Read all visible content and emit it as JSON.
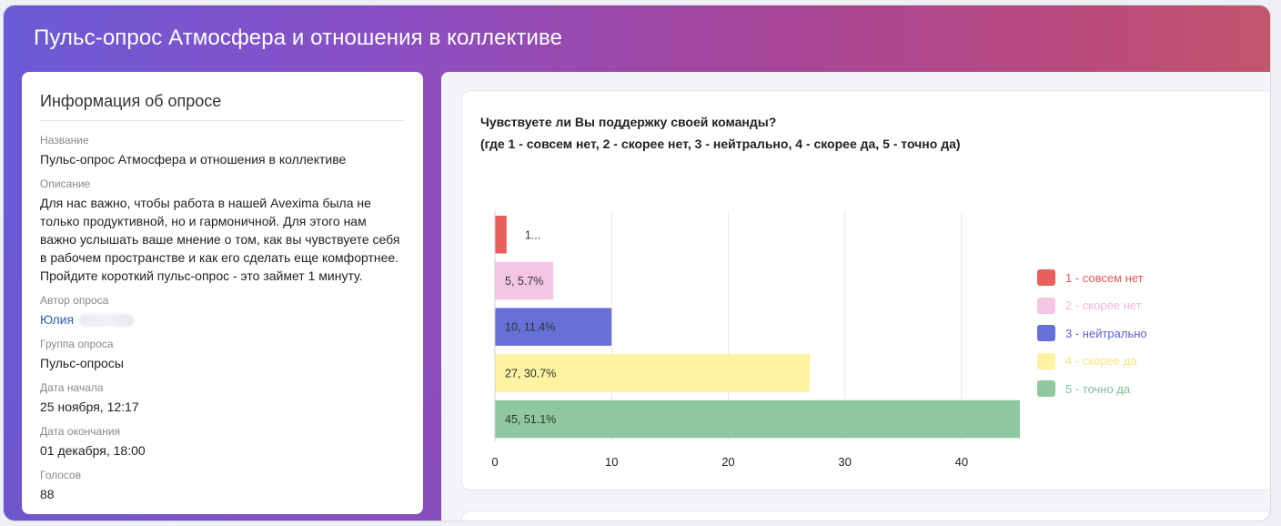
{
  "header": {
    "title": "Пульс-опрос Атмосфера и отношения в коллективе"
  },
  "info": {
    "title": "Информация об опросе",
    "fields": [
      {
        "label": "Название",
        "value": "Пульс-опрос Атмосфера и отношения в коллективе"
      },
      {
        "label": "Описание",
        "value": "Для нас важно, чтобы работа в нашей Avexima была не только продуктивной, но и гармоничной. Для этого нам важно услышать ваше мнение о том, как вы чувствуете себя в рабочем пространстве и как его сделать еще комфортнее. Пройдите короткий пульс-опрос - это займет 1 минуту."
      },
      {
        "label": "Автор опроса",
        "value": "Юлия"
      },
      {
        "label": "Группа опроса",
        "value": "Пульс-опросы"
      },
      {
        "label": "Дата начала",
        "value": "25 ноября, 12:17"
      },
      {
        "label": "Дата окончания",
        "value": "01 декабря, 18:00"
      },
      {
        "label": "Голосов",
        "value": "88"
      }
    ]
  },
  "question": {
    "line1": "Чувствуете ли Вы поддержку своей команды?",
    "line2": "(где 1 - совсем нет, 2 - скорее нет, 3 - нейтрально, 4 - скорее да, 5 - точно да)"
  },
  "chart_data": {
    "type": "bar",
    "orientation": "horizontal",
    "categories": [
      "1 - совсем нет",
      "2 - скорее нет",
      "3 - нейтрально",
      "4 - скорее да",
      "5 - точно да"
    ],
    "values": [
      1,
      5,
      10,
      27,
      45
    ],
    "data_labels": [
      "1...",
      "5, 5.7%",
      "10, 11.4%",
      "27, 30.7%",
      "45, 51.1%"
    ],
    "colors": [
      "#e8605c",
      "#f4c6e4",
      "#6670d6",
      "#fdf3a0",
      "#8fc89e"
    ],
    "legend_text_colors": [
      "#e05a56",
      "#f0b6da",
      "#5b63cc",
      "#f6e27a",
      "#7fbf8f"
    ],
    "xlim": [
      0,
      45
    ],
    "xticks": [
      0,
      10,
      20,
      30,
      40
    ],
    "grid": true,
    "legend_position": "right"
  }
}
